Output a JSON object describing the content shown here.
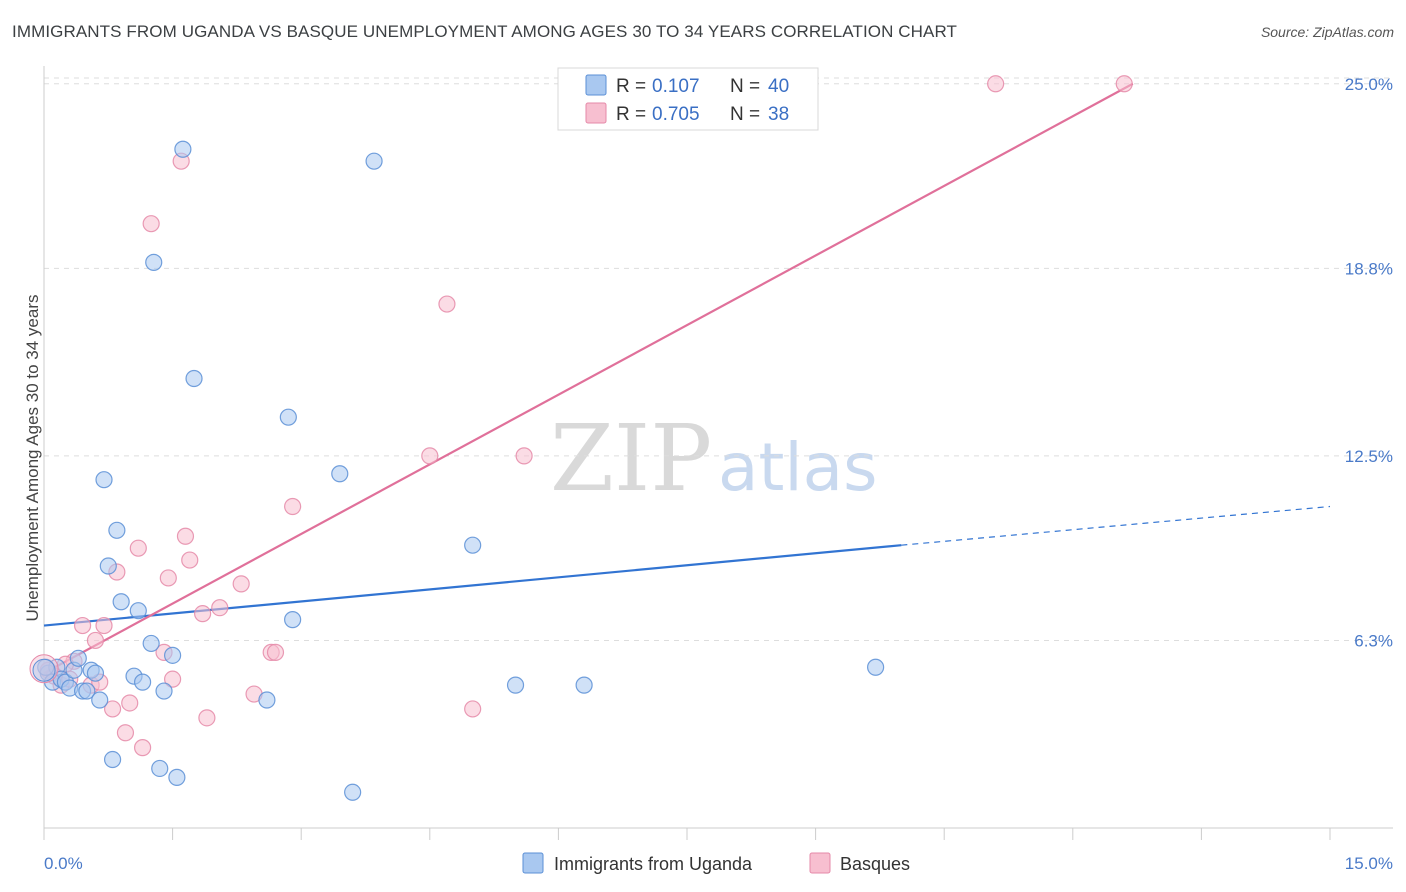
{
  "header": {
    "title": "IMMIGRANTS FROM UGANDA VS BASQUE UNEMPLOYMENT AMONG AGES 30 TO 34 YEARS CORRELATION CHART",
    "source": "Source: ZipAtlas.com"
  },
  "legend": {
    "row1": {
      "r_label": "R = ",
      "r_value": "0.107",
      "n_label": "N = ",
      "n_value": "40"
    },
    "row2": {
      "r_label": "R = ",
      "r_value": "0.705",
      "n_label": "N = ",
      "n_value": "38"
    }
  },
  "watermark": {
    "zip": "ZIP",
    "atlas": "atlas"
  },
  "colors": {
    "uganda_fill": "#a9c8f0",
    "uganda_stroke": "#5b8fd6",
    "uganda_line": "#3274d2",
    "basque_fill": "#f7bfd0",
    "basque_stroke": "#e589a8",
    "basque_line": "#e0709a",
    "grid": "#dddddd",
    "tick_label": "#4a7ac8"
  },
  "chart_data": {
    "type": "scatter",
    "xlabel": "",
    "ylabel": "Unemployment Among Ages 30 to 34 years",
    "xlim": [
      0,
      15
    ],
    "ylim": [
      0,
      26
    ],
    "x_tick_labels": {
      "left": "0.0%",
      "right": "15.0%"
    },
    "y_ticks": [
      {
        "value": 6.3,
        "label": "6.3%"
      },
      {
        "value": 12.5,
        "label": "12.5%"
      },
      {
        "value": 18.8,
        "label": "18.8%"
      },
      {
        "value": 25.0,
        "label": "25.0%"
      }
    ],
    "series": [
      {
        "name": "Immigrants from Uganda",
        "R": 0.107,
        "N": 40,
        "trend": {
          "x1": 0.0,
          "y1": 6.8,
          "x2": 10.0,
          "y2": 9.5,
          "dash_to_x": 15.0,
          "dash_to_y": 10.8
        },
        "points": [
          [
            0.05,
            5.2
          ],
          [
            0.1,
            4.9
          ],
          [
            0.15,
            5.4
          ],
          [
            0.2,
            5.0
          ],
          [
            0.25,
            4.9
          ],
          [
            0.3,
            4.7
          ],
          [
            0.35,
            5.3
          ],
          [
            0.4,
            5.7
          ],
          [
            0.45,
            4.6
          ],
          [
            0.5,
            4.6
          ],
          [
            0.55,
            5.3
          ],
          [
            0.6,
            5.2
          ],
          [
            0.65,
            4.3
          ],
          [
            0.7,
            11.7
          ],
          [
            0.75,
            8.8
          ],
          [
            0.8,
            2.3
          ],
          [
            0.85,
            10.0
          ],
          [
            0.9,
            7.6
          ],
          [
            1.05,
            5.1
          ],
          [
            1.1,
            7.3
          ],
          [
            1.15,
            4.9
          ],
          [
            1.25,
            6.2
          ],
          [
            1.35,
            2.0
          ],
          [
            1.4,
            4.6
          ],
          [
            1.5,
            5.8
          ],
          [
            1.55,
            1.7
          ],
          [
            1.28,
            19.0
          ],
          [
            1.62,
            22.8
          ],
          [
            1.75,
            15.1
          ],
          [
            2.6,
            4.3
          ],
          [
            2.85,
            13.8
          ],
          [
            2.9,
            7.0
          ],
          [
            3.45,
            11.9
          ],
          [
            3.6,
            1.2
          ],
          [
            3.85,
            22.4
          ],
          [
            5.0,
            9.5
          ],
          [
            5.5,
            4.8
          ],
          [
            6.3,
            4.8
          ],
          [
            9.7,
            5.4
          ],
          [
            0.02,
            5.4
          ]
        ]
      },
      {
        "name": "Basques",
        "R": 0.705,
        "N": 38,
        "trend": {
          "x1": 0.0,
          "y1": 5.2,
          "x2": 12.7,
          "y2": 25.0
        },
        "points": [
          [
            0.05,
            5.3
          ],
          [
            0.12,
            5.1
          ],
          [
            0.2,
            4.8
          ],
          [
            0.3,
            5.0
          ],
          [
            0.45,
            6.8
          ],
          [
            0.55,
            4.8
          ],
          [
            0.6,
            6.3
          ],
          [
            0.65,
            4.9
          ],
          [
            0.7,
            6.8
          ],
          [
            0.8,
            4.0
          ],
          [
            0.85,
            8.6
          ],
          [
            0.95,
            3.2
          ],
          [
            1.0,
            4.2
          ],
          [
            1.1,
            9.4
          ],
          [
            1.15,
            2.7
          ],
          [
            1.25,
            20.3
          ],
          [
            1.4,
            5.9
          ],
          [
            1.45,
            8.4
          ],
          [
            1.5,
            5.0
          ],
          [
            1.6,
            22.4
          ],
          [
            1.65,
            9.8
          ],
          [
            1.7,
            9.0
          ],
          [
            1.85,
            7.2
          ],
          [
            1.9,
            3.7
          ],
          [
            2.05,
            7.4
          ],
          [
            2.3,
            8.2
          ],
          [
            2.45,
            4.5
          ],
          [
            2.65,
            5.9
          ],
          [
            2.7,
            5.9
          ],
          [
            2.9,
            10.8
          ],
          [
            4.5,
            12.5
          ],
          [
            4.7,
            17.6
          ],
          [
            5.0,
            4.0
          ],
          [
            5.6,
            12.5
          ],
          [
            11.1,
            25.0
          ],
          [
            12.6,
            25.0
          ],
          [
            0.35,
            5.6
          ],
          [
            0.25,
            5.5
          ]
        ]
      }
    ]
  },
  "bottom_legend": {
    "items": [
      {
        "label": "Immigrants from Uganda"
      },
      {
        "label": "Basques"
      }
    ]
  }
}
